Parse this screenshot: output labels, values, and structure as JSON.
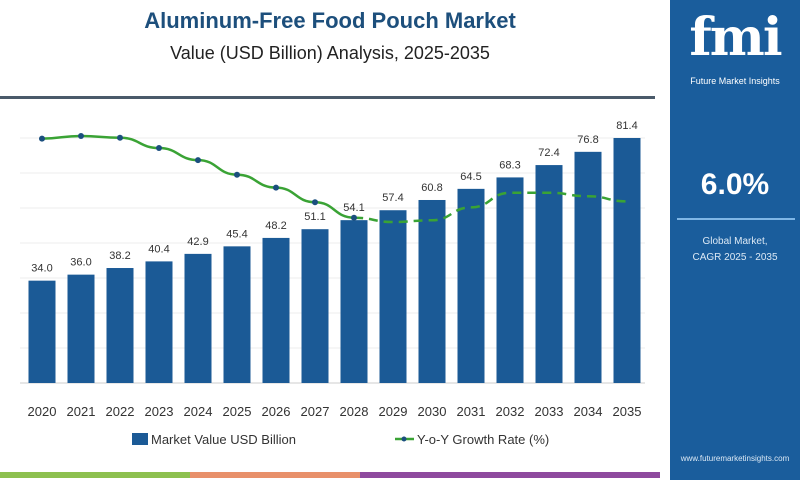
{
  "header": {
    "title": "Aluminum-Free Food Pouch Market",
    "subtitle": "Value (USD Billion) Analysis, 2025-2035"
  },
  "side_panel": {
    "logo_text": "fmi",
    "logo_caption": "Future Market Insights",
    "cagr_value": "6.0%",
    "cagr_label_line1": "Global Market,",
    "cagr_label_line2": "CAGR 2025 - 2035",
    "website": "www.futuremarketinsights.com",
    "background_color": "#1a5d9c"
  },
  "chart_data": {
    "type": "bar+line",
    "categories": [
      "2020",
      "2021",
      "2022",
      "2023",
      "2024",
      "2025",
      "2026",
      "2027",
      "2028",
      "2029",
      "2030",
      "2031",
      "2032",
      "2033",
      "2034",
      "2035"
    ],
    "series": [
      {
        "name": "Market Value USD Billion",
        "type": "bar",
        "color": "#1b5a96",
        "values": [
          34.0,
          36.0,
          38.2,
          40.4,
          42.9,
          45.4,
          48.2,
          51.1,
          54.1,
          57.4,
          60.8,
          64.5,
          68.3,
          72.4,
          76.8,
          81.4
        ],
        "labels": [
          "34.0",
          "36.0",
          "38.2",
          "40.4",
          "42.9",
          "45.4",
          "48.2",
          "51.1",
          "54.1",
          "57.4",
          "60.8",
          "64.5",
          "68.3",
          "72.4",
          "76.8",
          "81.4"
        ]
      },
      {
        "name": "Y-o-Y Growth Rate (%)",
        "type": "line",
        "color": "#3aa335",
        "marker_color": "#1b4f7e",
        "dashed_from": "2028",
        "values": [
          6.47,
          6.5,
          6.48,
          6.36,
          6.22,
          6.05,
          5.9,
          5.73,
          5.55,
          5.5,
          5.52,
          5.67,
          5.84,
          5.84,
          5.8,
          5.74
        ]
      }
    ],
    "ylim": [
      0,
      90
    ],
    "y2lim": [
      5.5,
      6.5
    ],
    "grid": true,
    "legend": "bottom"
  },
  "footer_strip_colors": [
    "#8dc04f",
    "#e8906a",
    "#8e4a9e"
  ]
}
